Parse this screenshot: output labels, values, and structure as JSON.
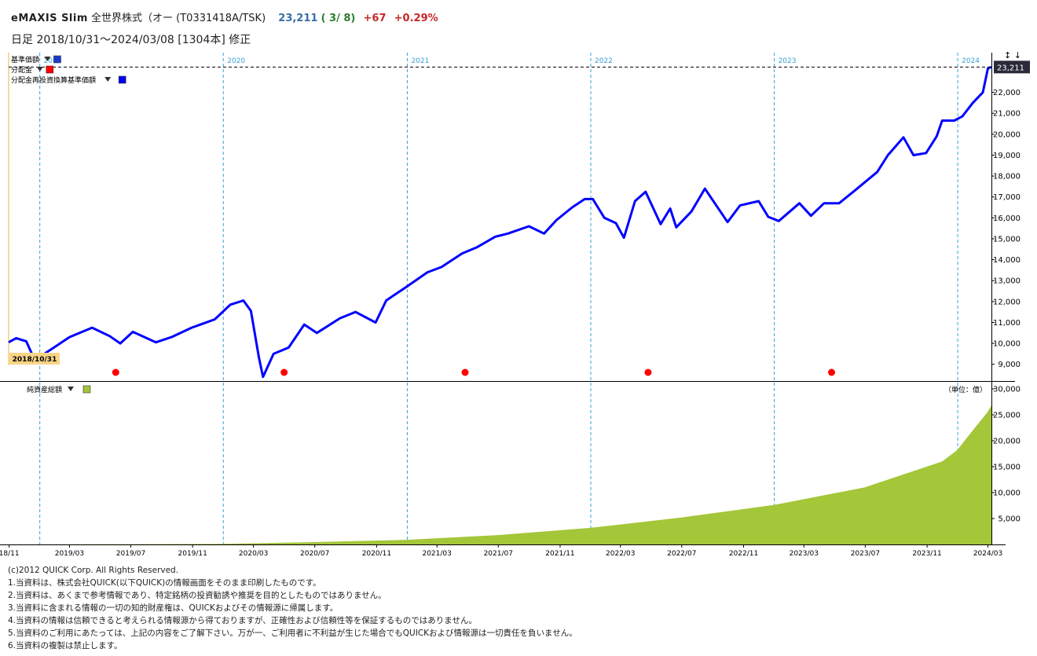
{
  "header": {
    "fund_name": "eMAXIS Slim",
    "fund_type": "全世界株式（オー (T0331418A/TSK)",
    "price": "23,211",
    "date": "( 3/ 8)",
    "change": "+67",
    "change_pct": "+0.29%"
  },
  "subheader": {
    "period": "日足",
    "range": "2018/10/31～2024/03/08 [1304本] 修正"
  },
  "chart_data": [
    {
      "type": "line",
      "legend": [
        {
          "label": "基準価額",
          "color": "#1a3acd"
        },
        {
          "label": "分配金",
          "color": "#ff0000"
        },
        {
          "label": "分配金再投資換算基準価額",
          "color": "#0000ff"
        }
      ],
      "y_ticks": [
        "9,000",
        "10,000",
        "11,000",
        "12,000",
        "13,000",
        "14,000",
        "15,000",
        "16,000",
        "17,000",
        "18,000",
        "19,000",
        "20,000",
        "21,000",
        "22,000"
      ],
      "ylim": [
        8200,
        23900
      ],
      "current_value": 23211,
      "current_label": "23,211",
      "start_label": "2018/10/31",
      "year_labels": [
        "2019",
        "2020",
        "2021",
        "2022",
        "2023",
        "2024"
      ],
      "series": [
        {
          "name": "分配金再投資換算基準価額",
          "color": "#0000ff",
          "points": [
            [
              "2018-10-31",
              10050
            ],
            [
              "2018-11-15",
              10250
            ],
            [
              "2018-12-05",
              10100
            ],
            [
              "2018-12-20",
              9300
            ],
            [
              "2018-12-26",
              9100
            ],
            [
              "2019-01-10",
              9500
            ],
            [
              "2019-02-01",
              9850
            ],
            [
              "2019-03-01",
              10300
            ],
            [
              "2019-04-15",
              10750
            ],
            [
              "2019-05-20",
              10350
            ],
            [
              "2019-06-10",
              10000
            ],
            [
              "2019-07-05",
              10550
            ],
            [
              "2019-08-20",
              10050
            ],
            [
              "2019-09-20",
              10300
            ],
            [
              "2019-10-30",
              10750
            ],
            [
              "2019-12-15",
              11150
            ],
            [
              "2020-01-15",
              11850
            ],
            [
              "2020-02-10",
              12050
            ],
            [
              "2020-02-25",
              11550
            ],
            [
              "2020-03-12",
              9300
            ],
            [
              "2020-03-20",
              8400
            ],
            [
              "2020-04-10",
              9500
            ],
            [
              "2020-05-10",
              9800
            ],
            [
              "2020-06-10",
              10900
            ],
            [
              "2020-07-05",
              10500
            ],
            [
              "2020-08-20",
              11200
            ],
            [
              "2020-09-20",
              11500
            ],
            [
              "2020-10-30",
              11000
            ],
            [
              "2020-11-20",
              12050
            ],
            [
              "2020-12-30",
              12700
            ],
            [
              "2021-02-10",
              13400
            ],
            [
              "2021-03-10",
              13650
            ],
            [
              "2021-04-20",
              14300
            ],
            [
              "2021-05-20",
              14600
            ],
            [
              "2021-06-25",
              15100
            ],
            [
              "2021-07-20",
              15250
            ],
            [
              "2021-08-31",
              15600
            ],
            [
              "2021-09-30",
              15250
            ],
            [
              "2021-10-25",
              15900
            ],
            [
              "2021-11-25",
              16500
            ],
            [
              "2021-12-20",
              16900
            ],
            [
              "2022-01-05",
              16900
            ],
            [
              "2022-01-28",
              16000
            ],
            [
              "2022-02-20",
              15750
            ],
            [
              "2022-03-08",
              15050
            ],
            [
              "2022-03-30",
              16800
            ],
            [
              "2022-04-20",
              17250
            ],
            [
              "2022-05-20",
              15700
            ],
            [
              "2022-06-08",
              16450
            ],
            [
              "2022-06-20",
              15550
            ],
            [
              "2022-07-20",
              16300
            ],
            [
              "2022-08-16",
              17400
            ],
            [
              "2022-09-30",
              15800
            ],
            [
              "2022-10-25",
              16600
            ],
            [
              "2022-12-01",
              16800
            ],
            [
              "2022-12-20",
              16050
            ],
            [
              "2023-01-10",
              15850
            ],
            [
              "2023-02-20",
              16700
            ],
            [
              "2023-03-15",
              16100
            ],
            [
              "2023-04-10",
              16700
            ],
            [
              "2023-05-10",
              16700
            ],
            [
              "2023-06-10",
              17300
            ],
            [
              "2023-07-25",
              18200
            ],
            [
              "2023-08-15",
              19000
            ],
            [
              "2023-09-15",
              19850
            ],
            [
              "2023-10-05",
              19000
            ],
            [
              "2023-10-30",
              19100
            ],
            [
              "2023-11-20",
              19900
            ],
            [
              "2023-12-01",
              20650
            ],
            [
              "2023-12-25",
              20650
            ],
            [
              "2024-01-10",
              20850
            ],
            [
              "2024-01-31",
              21500
            ],
            [
              "2024-02-20",
              22000
            ],
            [
              "2024-03-01",
              23150
            ],
            [
              "2024-03-08",
              23211
            ]
          ]
        }
      ],
      "distribution_markers": [
        "2019-06-01",
        "2020-05-01",
        "2021-04-26",
        "2022-04-25",
        "2023-04-25"
      ]
    },
    {
      "type": "area",
      "legend": [
        {
          "label": "純資産総額",
          "color": "#a4c639"
        }
      ],
      "unit_label": "（単位：億）",
      "y_ticks": [
        "5,000",
        "10,000",
        "15,000",
        "20,000",
        "25,000",
        "30,000"
      ],
      "ylim": [
        0,
        30000
      ],
      "series": [
        {
          "name": "純資産総額",
          "color": "#a4c639",
          "points": [
            [
              "2018-10-31",
              0
            ],
            [
              "2019-06-30",
              40
            ],
            [
              "2019-12-31",
              120
            ],
            [
              "2020-06-30",
              450
            ],
            [
              "2020-12-31",
              900
            ],
            [
              "2021-06-30",
              1800
            ],
            [
              "2021-12-31",
              3200
            ],
            [
              "2022-06-30",
              5200
            ],
            [
              "2022-12-31",
              7600
            ],
            [
              "2023-06-30",
              11000
            ],
            [
              "2023-12-01",
              16000
            ],
            [
              "2023-12-31",
              18200
            ],
            [
              "2024-01-31",
              22000
            ],
            [
              "2024-02-29",
              25500
            ],
            [
              "2024-03-08",
              26800
            ]
          ]
        }
      ]
    }
  ],
  "x_axis_ticks": [
    {
      "label": "18/11",
      "date": "2018-11-01"
    },
    {
      "label": "2019/03",
      "date": "2019-03-01"
    },
    {
      "label": "2019/07",
      "date": "2019-07-01"
    },
    {
      "label": "2019/11",
      "date": "2019-11-01"
    },
    {
      "label": "2020/03",
      "date": "2020-03-01"
    },
    {
      "label": "2020/07",
      "date": "2020-07-01"
    },
    {
      "label": "2020/11",
      "date": "2020-11-01"
    },
    {
      "label": "2021/03",
      "date": "2021-03-01"
    },
    {
      "label": "2021/07",
      "date": "2021-07-01"
    },
    {
      "label": "2021/11",
      "date": "2021-11-01"
    },
    {
      "label": "2022/03",
      "date": "2022-03-01"
    },
    {
      "label": "2022/07",
      "date": "2022-07-01"
    },
    {
      "label": "2022/11",
      "date": "2022-11-01"
    },
    {
      "label": "2023/03",
      "date": "2023-03-01"
    },
    {
      "label": "2023/07",
      "date": "2023-07-01"
    },
    {
      "label": "2023/11",
      "date": "2023-11-01"
    },
    {
      "label": "2024/03",
      "date": "2024-03-01"
    }
  ],
  "year_lines": [
    "2019-01-01",
    "2020-01-01",
    "2021-01-01",
    "2022-01-01",
    "2023-01-01",
    "2024-01-01"
  ],
  "scroll_icons": "↕ ↓",
  "footer": [
    "(c)2012 QUICK Corp. All Rights Reserved.",
    "1.当資料は、株式会社QUICK(以下QUICK)の情報画面をそのまま印刷したものです。",
    "2.当資料は、あくまで参考情報であり、特定銘柄の投資勧誘や推奨を目的としたものではありません。",
    "3.当資料に含まれる情報の一切の知的財産権は、QUICKおよびその情報源に帰属します。",
    "4.当資料の情報は信頼できると考えられる情報源から得ておりますが、正確性および信頼性等を保証するものではありません。",
    "5.当資料のご利用にあたっては、上記の内容をご了解下さい。万が一、ご利用者に不利益が生じた場合でもQUICKおよび情報源は一切責任を負いません。",
    "6.当資料の複製は禁止します。"
  ]
}
